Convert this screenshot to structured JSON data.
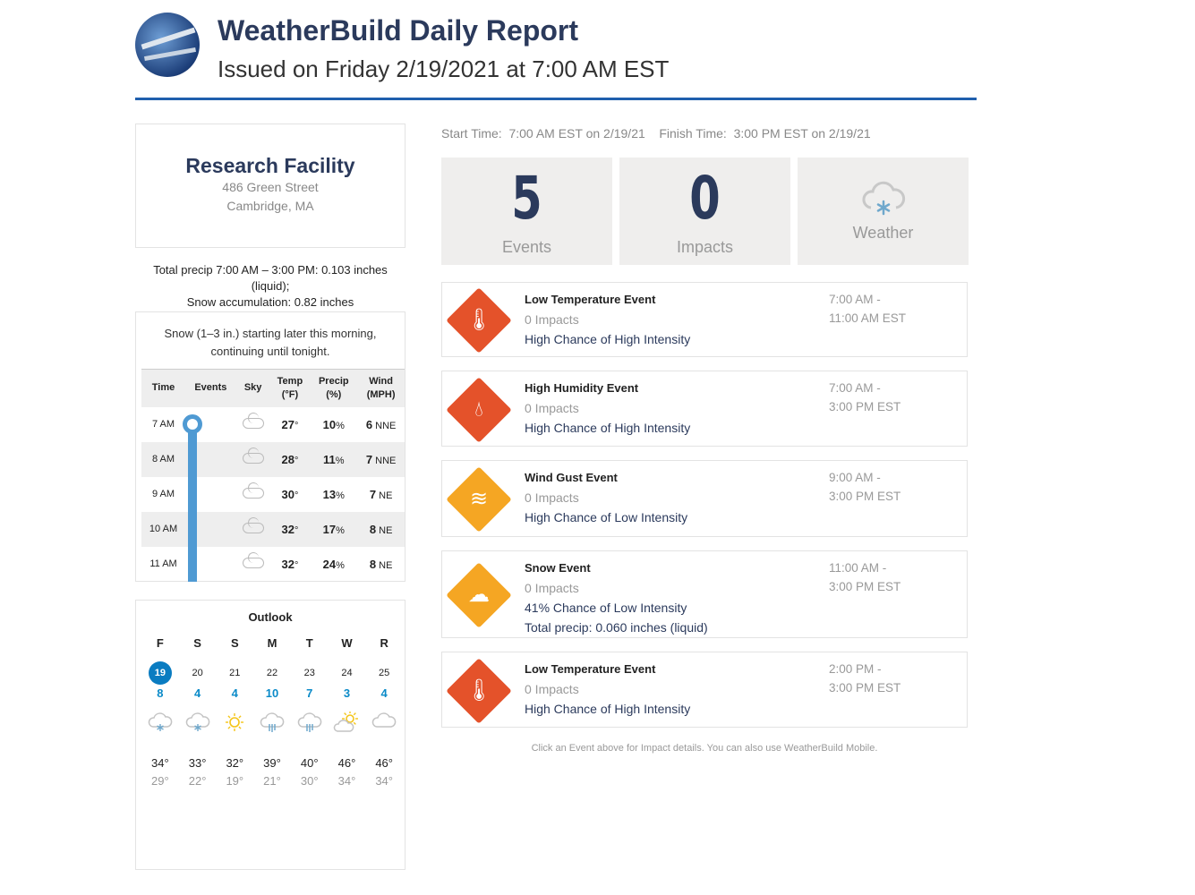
{
  "header": {
    "title": "WeatherBuild Daily Report",
    "subtitle": "Issued on Friday 2/19/2021 at 7:00 AM EST",
    "accent": "#1f5fad"
  },
  "location": {
    "name": "Research Facility",
    "street": "486 Green Street",
    "city": "Cambridge, MA"
  },
  "precip_summary": {
    "line1": "Total precip 7:00 AM – 3:00 PM: 0.103 inches (liquid);",
    "line2": "Snow accumulation: 0.82 inches"
  },
  "forecast": {
    "summary": "Snow (1–3 in.) starting later this morning, continuing until tonight.",
    "headers": {
      "time": "Time",
      "events": "Events",
      "sky": "Sky",
      "temp": "Temp",
      "temp_unit": "(°F)",
      "precip": "Precip",
      "precip_unit": "(%)",
      "wind": "Wind",
      "wind_unit": "(MPH)"
    },
    "rows": [
      {
        "time": "7 AM",
        "sky": "cloud-icon",
        "temp": "27",
        "precip": "10",
        "wind": "6",
        "dir": "NNE"
      },
      {
        "time": "8 AM",
        "sky": "cloud-icon",
        "temp": "28",
        "precip": "11",
        "wind": "7",
        "dir": "NNE"
      },
      {
        "time": "9 AM",
        "sky": "cloud-icon",
        "temp": "30",
        "precip": "13",
        "wind": "7",
        "dir": "NE"
      },
      {
        "time": "10 AM",
        "sky": "cloud-icon",
        "temp": "32",
        "precip": "17",
        "wind": "8",
        "dir": "NE"
      },
      {
        "time": "11 AM",
        "sky": "cloud-icon",
        "temp": "32",
        "precip": "24",
        "wind": "8",
        "dir": "NE"
      }
    ]
  },
  "outlook": {
    "title": "Outlook",
    "days": [
      {
        "dow": "F",
        "date": "19",
        "val": "8",
        "icon": "snow-cloud-icon",
        "hi": "34°",
        "lo": "29°",
        "selected": true
      },
      {
        "dow": "S",
        "date": "20",
        "val": "4",
        "icon": "snow-cloud-icon",
        "hi": "33°",
        "lo": "22°"
      },
      {
        "dow": "S",
        "date": "21",
        "val": "4",
        "icon": "sun-icon",
        "hi": "32°",
        "lo": "19°"
      },
      {
        "dow": "M",
        "date": "22",
        "val": "10",
        "icon": "rain-cloud-icon",
        "hi": "39°",
        "lo": "21°"
      },
      {
        "dow": "T",
        "date": "23",
        "val": "7",
        "icon": "rain-cloud-icon",
        "hi": "40°",
        "lo": "30°"
      },
      {
        "dow": "W",
        "date": "24",
        "val": "3",
        "icon": "partly-sunny-icon",
        "hi": "46°",
        "lo": "34°"
      },
      {
        "dow": "R",
        "date": "25",
        "val": "4",
        "icon": "cloud-icon",
        "hi": "46°",
        "lo": "34°"
      }
    ]
  },
  "times": {
    "start_label": "Start Time:",
    "start": "7:00 AM EST on 2/19/21",
    "finish_label": "Finish Time:",
    "finish": "3:00 PM EST on 2/19/21"
  },
  "cards": {
    "events_count": "5",
    "events_label": "Events",
    "impacts_count": "0",
    "impacts_label": "Impacts",
    "weather_label": "Weather",
    "weather_icon": "snow-cloud-icon"
  },
  "events": [
    {
      "title": "Low Temperature Event",
      "impacts": "0 Impacts",
      "chance": "High Chance of High Intensity",
      "time1": "7:00 AM -",
      "time2": "11:00 AM EST",
      "icon": "thermometer-icon",
      "color": "#e4522a"
    },
    {
      "title": "High Humidity Event",
      "impacts": "0 Impacts",
      "chance": "High Chance of High Intensity",
      "time1": "7:00 AM -",
      "time2": "3:00 PM EST",
      "icon": "droplet-icon",
      "color": "#e4522a"
    },
    {
      "title": "Wind Gust Event",
      "impacts": "0 Impacts",
      "chance": "High Chance of Low Intensity",
      "time1": "9:00 AM -",
      "time2": "3:00 PM EST",
      "icon": "wind-icon",
      "color": "#f5a623"
    },
    {
      "title": "Snow Event",
      "impacts": "0 Impacts",
      "chance": "41% Chance of Low Intensity",
      "extra": "Total precip: 0.060 inches (liquid)",
      "time1": "11:00 AM -",
      "time2": "3:00 PM EST",
      "icon": "snow-cloud-icon",
      "color": "#f5a623"
    },
    {
      "title": "Low Temperature Event",
      "impacts": "0 Impacts",
      "chance": "High Chance of High Intensity",
      "time1": "2:00 PM -",
      "time2": "3:00 PM EST",
      "icon": "thermometer-icon",
      "color": "#e4522a"
    }
  ],
  "footer": "Click an Event above for Impact details. You can also use WeatherBuild Mobile."
}
